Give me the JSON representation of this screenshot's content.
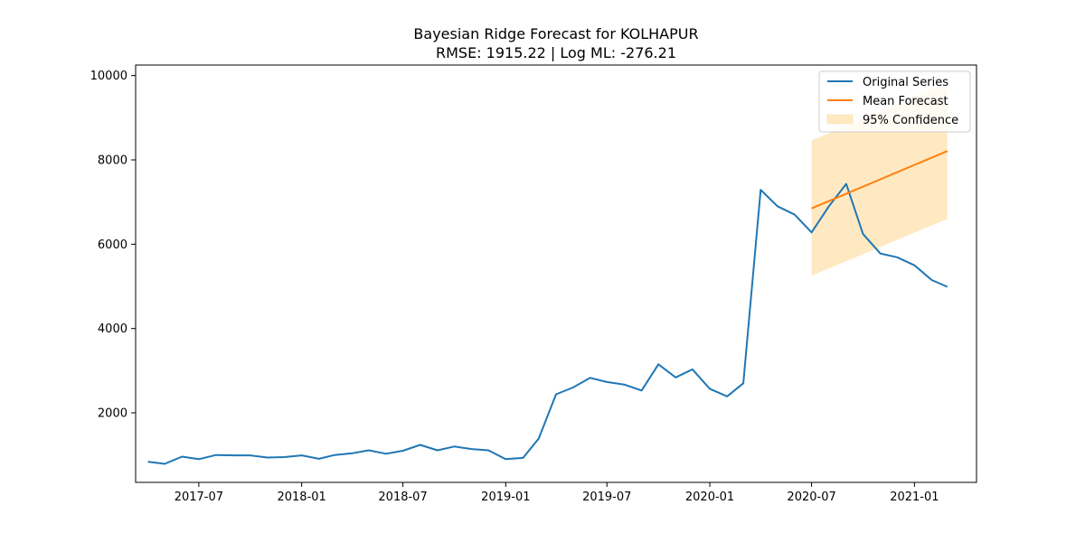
{
  "chart_data": {
    "type": "line",
    "title": "Bayesian Ridge Forecast for KOLHAPUR",
    "subtitle": "RMSE: 1915.22 | Log ML: -276.21",
    "xlabel": "",
    "ylabel": "",
    "xlim": [
      "2017-03-10",
      "2021-04-22"
    ],
    "ylim": [
      350,
      10250
    ],
    "x_ticks": [
      "2017-07",
      "2018-01",
      "2018-07",
      "2019-01",
      "2019-07",
      "2020-01",
      "2020-07",
      "2021-01"
    ],
    "y_ticks": [
      2000,
      4000,
      6000,
      8000,
      10000
    ],
    "y_tick_labels": [
      "2000",
      "4000",
      "6000",
      "8000",
      "10000"
    ],
    "grid": false,
    "legend_position": "top-right",
    "series": [
      {
        "name": "Original Series",
        "color": "#1f77b4",
        "x": [
          "2017-04",
          "2017-05",
          "2017-06",
          "2017-07",
          "2017-08",
          "2017-09",
          "2017-10",
          "2017-11",
          "2017-12",
          "2018-01",
          "2018-02",
          "2018-03",
          "2018-04",
          "2018-05",
          "2018-06",
          "2018-07",
          "2018-08",
          "2018-09",
          "2018-10",
          "2018-11",
          "2018-12",
          "2019-01",
          "2019-02",
          "2019-03",
          "2019-04",
          "2019-05",
          "2019-06",
          "2019-07",
          "2019-08",
          "2019-09",
          "2019-10",
          "2019-11",
          "2019-12",
          "2020-01",
          "2020-02",
          "2020-03",
          "2020-04",
          "2020-05",
          "2020-06",
          "2020-07",
          "2020-08",
          "2020-09",
          "2020-10",
          "2020-11",
          "2020-12",
          "2021-01",
          "2021-02",
          "2021-03"
        ],
        "values": [
          840,
          790,
          960,
          900,
          1000,
          990,
          990,
          940,
          950,
          990,
          910,
          1000,
          1040,
          1110,
          1030,
          1100,
          1240,
          1110,
          1200,
          1140,
          1110,
          900,
          930,
          1390,
          2440,
          2600,
          2830,
          2730,
          2670,
          2530,
          3150,
          2840,
          3030,
          2570,
          2390,
          2700,
          7290,
          6900,
          6700,
          6280,
          6900,
          7430,
          6240,
          5780,
          5690,
          5500,
          5150,
          4990
        ]
      },
      {
        "name": "Mean Forecast",
        "color": "#ff7f0e",
        "x": [
          "2020-07",
          "2021-03"
        ],
        "values": [
          6850,
          8210
        ]
      }
    ],
    "confidence_band": {
      "name": "95% Confidence",
      "color": "#ffe9c2",
      "x": [
        "2020-07",
        "2021-03"
      ],
      "lower": [
        5250,
        6600
      ],
      "upper": [
        8460,
        9820
      ]
    }
  }
}
